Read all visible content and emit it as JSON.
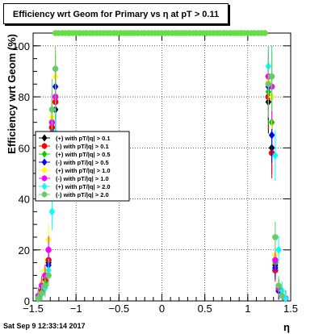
{
  "title": "Efficiency wrt Geom for Primary vs   η at pT > 0.11",
  "footer": "Sat Sep  9 12:33:14 2017",
  "chart_data": {
    "type": "scatter",
    "xlabel": "η",
    "ylabel": "Efficiency wrt Geom (%)",
    "xlim": [
      -1.5,
      1.5
    ],
    "ylim": [
      0,
      105
    ],
    "xticks": [
      "−1.5",
      "−1",
      "−0.5",
      "0",
      "0.5",
      "1",
      "1.5"
    ],
    "yticks": [
      "0",
      "20",
      "40",
      "60",
      "80",
      "100"
    ],
    "grid": true,
    "legend_position": "left-middle",
    "series": [
      {
        "name": "(+) with pT/|q| > 0.1",
        "color": "#000000",
        "marker": "diamond",
        "points": [
          [
            -1.44,
            1
          ],
          [
            -1.4,
            3
          ],
          [
            -1.36,
            6
          ],
          [
            -1.32,
            15
          ],
          [
            -1.28,
            65
          ],
          [
            -1.24,
            75
          ],
          [
            1.24,
            78
          ],
          [
            1.28,
            60
          ],
          [
            1.32,
            14
          ],
          [
            1.36,
            5
          ],
          [
            1.44,
            1
          ]
        ]
      },
      {
        "name": "(-) with pT/|q| > 0.1",
        "color": "#ff0000",
        "marker": "circle",
        "points": [
          [
            -1.44,
            1
          ],
          [
            -1.4,
            4
          ],
          [
            -1.36,
            8
          ],
          [
            -1.32,
            16
          ],
          [
            -1.28,
            68
          ],
          [
            -1.24,
            78
          ],
          [
            1.24,
            80
          ],
          [
            1.28,
            58
          ],
          [
            1.32,
            12
          ],
          [
            1.36,
            4
          ],
          [
            1.44,
            1
          ]
        ]
      },
      {
        "name": "(+) with pT/|q| > 0.5",
        "color": "#00cc00",
        "marker": "diamond",
        "points": [
          [
            -1.44,
            1
          ],
          [
            -1.4,
            3
          ],
          [
            -1.36,
            7
          ],
          [
            -1.32,
            20
          ],
          [
            -1.28,
            70
          ],
          [
            -1.24,
            80
          ],
          [
            1.24,
            82
          ],
          [
            1.28,
            70
          ],
          [
            1.32,
            15
          ],
          [
            1.36,
            5
          ],
          [
            1.44,
            1
          ]
        ]
      },
      {
        "name": "(-) with pT/|q| > 0.5",
        "color": "#0000ff",
        "marker": "diamond",
        "points": [
          [
            -1.44,
            1
          ],
          [
            -1.4,
            3
          ],
          [
            -1.36,
            6
          ],
          [
            -1.32,
            14
          ],
          [
            -1.28,
            66
          ],
          [
            -1.24,
            84
          ],
          [
            1.24,
            84
          ],
          [
            1.28,
            65
          ],
          [
            1.32,
            13
          ],
          [
            1.36,
            4
          ],
          [
            1.44,
            1
          ]
        ]
      },
      {
        "name": "(+) with pT/|q| > 1.0",
        "color": "#ffff00",
        "marker": "diamond",
        "points": [
          [
            -1.44,
            2
          ],
          [
            -1.4,
            7
          ],
          [
            -1.36,
            12
          ],
          [
            -1.32,
            24
          ],
          [
            -1.28,
            72
          ],
          [
            -1.24,
            88
          ],
          [
            1.24,
            86
          ],
          [
            1.28,
            80
          ],
          [
            1.32,
            18
          ],
          [
            1.36,
            6
          ],
          [
            1.44,
            1
          ]
        ]
      },
      {
        "name": "(-) with pT/|q| > 1.0",
        "color": "#ff00ff",
        "marker": "circle",
        "points": [
          [
            -1.44,
            2
          ],
          [
            -1.4,
            6
          ],
          [
            -1.36,
            10
          ],
          [
            -1.32,
            20
          ],
          [
            -1.28,
            70
          ],
          [
            -1.24,
            80
          ],
          [
            1.24,
            88
          ],
          [
            1.28,
            84
          ],
          [
            1.32,
            16
          ],
          [
            1.36,
            5
          ],
          [
            1.44,
            1
          ]
        ]
      },
      {
        "name": "(+) with pT/|q| > 2.0",
        "color": "#00ffff",
        "marker": "diamond",
        "points": [
          [
            -1.44,
            1
          ],
          [
            -1.4,
            3
          ],
          [
            -1.36,
            5
          ],
          [
            -1.32,
            12
          ],
          [
            -1.28,
            35
          ],
          [
            -1.24,
            66
          ],
          [
            1.24,
            92
          ],
          [
            1.28,
            88
          ],
          [
            1.32,
            57
          ],
          [
            1.36,
            20
          ],
          [
            1.4,
            4
          ],
          [
            1.44,
            1
          ]
        ]
      },
      {
        "name": "(-) with pT/|q| > 2.0",
        "color": "#66cc66",
        "marker": "circle",
        "points": [
          [
            -1.44,
            1
          ],
          [
            -1.4,
            3
          ],
          [
            -1.36,
            6
          ],
          [
            -1.32,
            10
          ],
          [
            -1.28,
            75
          ],
          [
            -1.24,
            91
          ],
          [
            1.24,
            85
          ],
          [
            1.28,
            88
          ],
          [
            1.32,
            25
          ],
          [
            1.36,
            6
          ],
          [
            1.4,
            2
          ]
        ]
      },
      {
        "name": "",
        "color": "#66dd44",
        "marker": "circle",
        "points": [
          [
            -1.24,
            105
          ],
          [
            -1.2,
            105
          ],
          [
            -1.16,
            105
          ],
          [
            -1.12,
            105
          ],
          [
            -1.08,
            105
          ],
          [
            -1.04,
            105
          ],
          [
            -1.0,
            105
          ],
          [
            -0.96,
            105
          ],
          [
            -0.92,
            105
          ],
          [
            -0.88,
            105
          ],
          [
            -0.84,
            105
          ],
          [
            -0.8,
            105
          ],
          [
            -0.76,
            105
          ],
          [
            -0.72,
            105
          ],
          [
            -0.68,
            105
          ],
          [
            -0.64,
            105
          ],
          [
            -0.6,
            105
          ],
          [
            -0.56,
            105
          ],
          [
            -0.52,
            105
          ],
          [
            -0.48,
            105
          ],
          [
            -0.44,
            105
          ],
          [
            -0.4,
            105
          ],
          [
            -0.36,
            105
          ],
          [
            -0.32,
            105
          ],
          [
            -0.28,
            105
          ],
          [
            -0.24,
            105
          ],
          [
            -0.2,
            105
          ],
          [
            -0.16,
            105
          ],
          [
            -0.12,
            105
          ],
          [
            -0.08,
            105
          ],
          [
            -0.04,
            105
          ],
          [
            0.0,
            105
          ],
          [
            0.04,
            105
          ],
          [
            0.08,
            105
          ],
          [
            0.12,
            105
          ],
          [
            0.16,
            105
          ],
          [
            0.2,
            105
          ],
          [
            0.24,
            105
          ],
          [
            0.28,
            105
          ],
          [
            0.32,
            105
          ],
          [
            0.36,
            105
          ],
          [
            0.4,
            105
          ],
          [
            0.44,
            105
          ],
          [
            0.48,
            105
          ],
          [
            0.52,
            105
          ],
          [
            0.56,
            105
          ],
          [
            0.6,
            105
          ],
          [
            0.64,
            105
          ],
          [
            0.68,
            105
          ],
          [
            0.72,
            105
          ],
          [
            0.76,
            105
          ],
          [
            0.8,
            105
          ],
          [
            0.84,
            105
          ],
          [
            0.88,
            105
          ],
          [
            0.92,
            105
          ],
          [
            0.96,
            105
          ],
          [
            1.0,
            105
          ],
          [
            1.04,
            105
          ],
          [
            1.08,
            105
          ],
          [
            1.12,
            105
          ],
          [
            1.16,
            105
          ],
          [
            1.2,
            105
          ]
        ]
      }
    ]
  }
}
